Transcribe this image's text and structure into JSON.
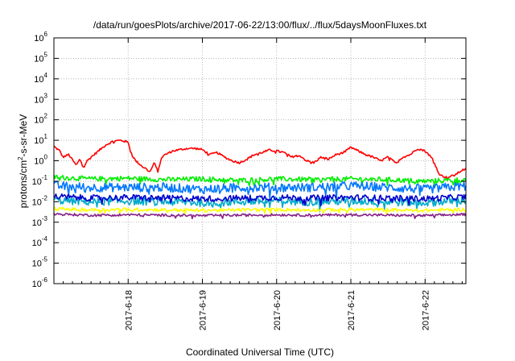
{
  "chart_data": {
    "type": "line",
    "title": "/data/run/goesPlots/archive/2017-06-22/13:00/flux/../flux/5daysMoonFluxes.txt",
    "xlabel": "Coordinated Universal Time (UTC)",
    "ylabel_prefix": "protons/cm",
    "ylabel_sup": "2",
    "ylabel_suffix": "-s-sr-MeV",
    "yscale": "log",
    "ylim": [
      1e-06,
      1000000.0
    ],
    "xlim": [
      17.0,
      22.55
    ],
    "grid": true,
    "legend": "none",
    "y_ticks": [
      {
        "value": -6,
        "base": "10",
        "exp": "-6"
      },
      {
        "value": -5,
        "base": "10",
        "exp": "-5"
      },
      {
        "value": -4,
        "base": "10",
        "exp": "-4"
      },
      {
        "value": -3,
        "base": "10",
        "exp": "-3"
      },
      {
        "value": -2,
        "base": "10",
        "exp": "-2"
      },
      {
        "value": -1,
        "base": "10",
        "exp": "-1"
      },
      {
        "value": 0,
        "base": "10",
        "exp": "0"
      },
      {
        "value": 1,
        "base": "10",
        "exp": "1"
      },
      {
        "value": 2,
        "base": "10",
        "exp": "2"
      },
      {
        "value": 3,
        "base": "10",
        "exp": "3"
      },
      {
        "value": 4,
        "base": "10",
        "exp": "4"
      },
      {
        "value": 5,
        "base": "10",
        "exp": "5"
      },
      {
        "value": 6,
        "base": "10",
        "exp": "6"
      }
    ],
    "x_ticks": [
      {
        "day": 18,
        "label": "2017-6-18"
      },
      {
        "day": 19,
        "label": "2017-6-19"
      },
      {
        "day": 20,
        "label": "2017-6-20"
      },
      {
        "day": 21,
        "label": "2017-6-21"
      },
      {
        "day": 22,
        "label": "2017-6-22"
      }
    ],
    "series": [
      {
        "color": "#ff0000",
        "noise": 0.05,
        "days": [
          17.0,
          17.08,
          17.12,
          17.2,
          17.3,
          17.35,
          17.4,
          17.45,
          17.5,
          17.6,
          17.7,
          17.8,
          17.9,
          17.95,
          18.0,
          18.05,
          18.1,
          18.2,
          18.3,
          18.35,
          18.4,
          18.45,
          18.5,
          18.6,
          18.7,
          18.8,
          18.9,
          19.0,
          19.1,
          19.2,
          19.3,
          19.4,
          19.5,
          19.6,
          19.7,
          19.8,
          19.9,
          20.0,
          20.1,
          20.2,
          20.3,
          20.4,
          20.5,
          20.6,
          20.7,
          20.8,
          20.9,
          21.0,
          21.1,
          21.2,
          21.3,
          21.4,
          21.5,
          21.6,
          21.7,
          21.8,
          21.9,
          22.0,
          22.05,
          22.1,
          22.15,
          22.2,
          22.3,
          22.4,
          22.5,
          22.55
        ],
        "values": [
          5,
          3,
          1.5,
          2,
          0.6,
          1.2,
          0.5,
          1,
          1.5,
          3,
          6,
          9,
          10,
          9,
          8,
          2,
          1,
          0.5,
          0.3,
          0.8,
          0.3,
          1.5,
          2,
          3,
          3.5,
          4,
          4,
          3.5,
          2,
          2.5,
          1.5,
          1,
          0.8,
          1.2,
          2,
          2.5,
          3.3,
          3,
          2.5,
          1.5,
          2,
          1,
          0.8,
          1.5,
          1.2,
          2,
          2.5,
          4.5,
          3,
          2,
          1.5,
          1,
          1.5,
          0.8,
          1.5,
          2,
          4,
          3,
          2,
          1.2,
          0.5,
          0.2,
          0.15,
          0.2,
          0.35,
          0.4
        ]
      },
      {
        "color": "#00ee00",
        "noise": 0.12,
        "days": [
          17.0,
          17.5,
          18.0,
          18.5,
          19.0,
          19.5,
          20.0,
          20.5,
          21.0,
          21.5,
          22.0,
          22.55
        ],
        "values": [
          0.16,
          0.13,
          0.14,
          0.12,
          0.13,
          0.11,
          0.13,
          0.12,
          0.13,
          0.12,
          0.1,
          0.12
        ]
      },
      {
        "color": "#0077ff",
        "noise": 0.22,
        "days": [
          17.0,
          17.5,
          18.0,
          18.5,
          19.0,
          19.5,
          20.0,
          20.5,
          21.0,
          21.5,
          22.0,
          22.55
        ],
        "values": [
          0.06,
          0.05,
          0.05,
          0.05,
          0.04,
          0.05,
          0.05,
          0.05,
          0.06,
          0.05,
          0.04,
          0.06
        ]
      },
      {
        "color": "#00aacc",
        "noise": 0.2,
        "days": [
          17.0,
          17.5,
          18.0,
          18.5,
          19.0,
          19.5,
          20.0,
          20.5,
          21.0,
          21.5,
          22.0,
          22.55
        ],
        "values": [
          0.012,
          0.01,
          0.011,
          0.01,
          0.009,
          0.01,
          0.011,
          0.01,
          0.011,
          0.01,
          0.009,
          0.012
        ]
      },
      {
        "color": "#0000cc",
        "noise": 0.15,
        "days": [
          17.0,
          17.5,
          18.0,
          18.5,
          19.0,
          19.5,
          20.0,
          20.5,
          21.0,
          21.5,
          22.0,
          22.55
        ],
        "values": [
          0.018,
          0.015,
          0.016,
          0.015,
          0.014,
          0.015,
          0.016,
          0.015,
          0.016,
          0.015,
          0.014,
          0.017
        ]
      },
      {
        "color": "#ffff00",
        "noise": 0.08,
        "days": [
          17.0,
          17.5,
          18.0,
          18.5,
          19.0,
          19.5,
          20.0,
          20.5,
          21.0,
          21.5,
          22.0,
          22.55
        ],
        "values": [
          0.0045,
          0.004,
          0.0042,
          0.004,
          0.0038,
          0.004,
          0.0041,
          0.004,
          0.0041,
          0.004,
          0.0038,
          0.0042
        ]
      },
      {
        "color": "#882288",
        "noise": 0.06,
        "days": [
          17.0,
          17.5,
          18.0,
          18.5,
          19.0,
          19.5,
          20.0,
          20.5,
          21.0,
          21.5,
          22.0,
          22.55
        ],
        "values": [
          0.0025,
          0.0022,
          0.0023,
          0.0022,
          0.0021,
          0.0022,
          0.0023,
          0.0022,
          0.0023,
          0.0022,
          0.0021,
          0.0024
        ]
      }
    ]
  }
}
